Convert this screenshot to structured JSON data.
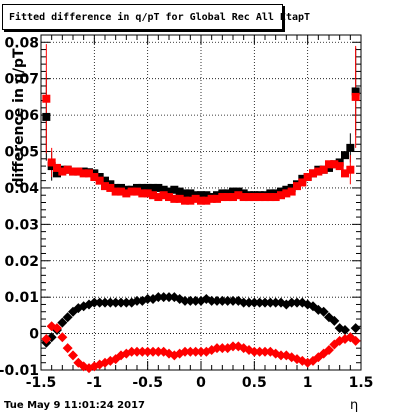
{
  "header": {
    "title": "Fitted difference in q/pT for Global Rec All EtapT"
  },
  "footer": {
    "timestamp": "Tue May  9 11:01:24 2017"
  },
  "chart_data": {
    "type": "scatter",
    "title": "Fitted difference in q/pT for Global Rec All EtapT",
    "xlabel": "η",
    "ylabel": "difference in q/pT",
    "xlim": [
      -1.5,
      1.5
    ],
    "ylim": [
      -0.01,
      0.082
    ],
    "grid": true,
    "xticks": [
      "-1.5",
      "-1",
      "-0.5",
      "0",
      "0.5",
      "1",
      "1.5"
    ],
    "yticks": [
      "-0.01",
      "0",
      "0.01",
      "0.02",
      "0.03",
      "0.04",
      "0.05",
      "0.06",
      "0.07",
      "0.08"
    ],
    "series": [
      {
        "color": "#000000",
        "marker": "square",
        "x": [
          -1.45,
          -1.4,
          -1.35,
          -1.3,
          -1.25,
          -1.2,
          -1.15,
          -1.1,
          -1.05,
          -1.0,
          -0.95,
          -0.9,
          -0.85,
          -0.8,
          -0.75,
          -0.7,
          -0.65,
          -0.6,
          -0.55,
          -0.5,
          -0.45,
          -0.4,
          -0.35,
          -0.3,
          -0.25,
          -0.2,
          -0.15,
          -0.1,
          -0.05,
          0.0,
          0.05,
          0.1,
          0.15,
          0.2,
          0.25,
          0.3,
          0.35,
          0.4,
          0.45,
          0.5,
          0.55,
          0.6,
          0.65,
          0.7,
          0.75,
          0.8,
          0.85,
          0.9,
          0.95,
          1.0,
          1.05,
          1.1,
          1.15,
          1.2,
          1.25,
          1.3,
          1.35,
          1.4,
          1.45
        ],
        "y": [
          0.0595,
          0.046,
          0.044,
          0.045,
          0.045,
          0.0445,
          0.0445,
          0.0445,
          0.0443,
          0.044,
          0.043,
          0.042,
          0.041,
          0.04,
          0.04,
          0.0395,
          0.0395,
          0.04,
          0.04,
          0.04,
          0.04,
          0.04,
          0.0395,
          0.039,
          0.0395,
          0.039,
          0.0385,
          0.0385,
          0.038,
          0.038,
          0.038,
          0.0375,
          0.038,
          0.0385,
          0.0385,
          0.039,
          0.039,
          0.0385,
          0.038,
          0.038,
          0.038,
          0.038,
          0.0385,
          0.0385,
          0.039,
          0.0395,
          0.04,
          0.041,
          0.0425,
          0.043,
          0.044,
          0.045,
          0.045,
          0.0455,
          0.0465,
          0.047,
          0.049,
          0.051,
          0.0665
        ],
        "errors": [
          0.012,
          0.004,
          0,
          0,
          0,
          0,
          0,
          0,
          0,
          0,
          0,
          0,
          0,
          0,
          0,
          0,
          0,
          0,
          0,
          0,
          0,
          0,
          0,
          0,
          0,
          0,
          0,
          0,
          0,
          0,
          0,
          0,
          0,
          0,
          0,
          0,
          0,
          0,
          0,
          0,
          0,
          0,
          0,
          0,
          0,
          0,
          0,
          0,
          0,
          0,
          0,
          0,
          0,
          0,
          0,
          0,
          0,
          0.004,
          0.012
        ]
      },
      {
        "color": "#ff0000",
        "marker": "square",
        "x": [
          -1.45,
          -1.4,
          -1.35,
          -1.3,
          -1.25,
          -1.2,
          -1.15,
          -1.1,
          -1.05,
          -1.0,
          -0.95,
          -0.9,
          -0.85,
          -0.8,
          -0.75,
          -0.7,
          -0.65,
          -0.6,
          -0.55,
          -0.5,
          -0.45,
          -0.4,
          -0.35,
          -0.3,
          -0.25,
          -0.2,
          -0.15,
          -0.1,
          -0.05,
          0.0,
          0.05,
          0.1,
          0.15,
          0.2,
          0.25,
          0.3,
          0.35,
          0.4,
          0.45,
          0.5,
          0.55,
          0.6,
          0.65,
          0.7,
          0.75,
          0.8,
          0.85,
          0.9,
          0.95,
          1.0,
          1.05,
          1.1,
          1.15,
          1.2,
          1.25,
          1.3,
          1.35,
          1.4,
          1.45
        ],
        "y": [
          0.0645,
          0.047,
          0.0455,
          0.0445,
          0.045,
          0.0445,
          0.0445,
          0.044,
          0.044,
          0.043,
          0.042,
          0.0405,
          0.04,
          0.039,
          0.039,
          0.0385,
          0.039,
          0.039,
          0.0385,
          0.0385,
          0.038,
          0.0375,
          0.038,
          0.0375,
          0.037,
          0.037,
          0.0365,
          0.0365,
          0.037,
          0.0365,
          0.0365,
          0.037,
          0.037,
          0.0375,
          0.0375,
          0.0375,
          0.038,
          0.0375,
          0.0375,
          0.0375,
          0.0375,
          0.0375,
          0.0375,
          0.0375,
          0.038,
          0.0385,
          0.039,
          0.0405,
          0.0415,
          0.043,
          0.044,
          0.0445,
          0.045,
          0.0465,
          0.0465,
          0.046,
          0.044,
          0.045,
          0.065
        ],
        "errors": [
          0.015,
          0.004,
          0,
          0,
          0,
          0,
          0,
          0,
          0,
          0,
          0,
          0,
          0,
          0,
          0,
          0,
          0,
          0,
          0,
          0,
          0,
          0,
          0,
          0,
          0,
          0,
          0,
          0,
          0,
          0,
          0,
          0,
          0,
          0,
          0,
          0,
          0,
          0,
          0,
          0,
          0,
          0,
          0,
          0,
          0,
          0,
          0,
          0,
          0,
          0,
          0,
          0,
          0,
          0,
          0,
          0,
          0,
          0.004,
          0.014
        ]
      },
      {
        "color": "#000000",
        "marker": "diamond",
        "x": [
          -1.45,
          -1.4,
          -1.35,
          -1.3,
          -1.25,
          -1.2,
          -1.15,
          -1.1,
          -1.05,
          -1.0,
          -0.95,
          -0.9,
          -0.85,
          -0.8,
          -0.75,
          -0.7,
          -0.65,
          -0.6,
          -0.55,
          -0.5,
          -0.45,
          -0.4,
          -0.35,
          -0.3,
          -0.25,
          -0.2,
          -0.15,
          -0.1,
          -0.05,
          0.0,
          0.05,
          0.1,
          0.15,
          0.2,
          0.25,
          0.3,
          0.35,
          0.4,
          0.45,
          0.5,
          0.55,
          0.6,
          0.65,
          0.7,
          0.75,
          0.8,
          0.85,
          0.9,
          0.95,
          1.0,
          1.05,
          1.1,
          1.15,
          1.2,
          1.25,
          1.3,
          1.35,
          1.4,
          1.45
        ],
        "y": [
          -0.0025,
          -0.001,
          0.001,
          0.003,
          0.0045,
          0.006,
          0.007,
          0.0075,
          0.008,
          0.0085,
          0.0085,
          0.0085,
          0.0085,
          0.0085,
          0.0085,
          0.0085,
          0.0085,
          0.009,
          0.009,
          0.0095,
          0.0095,
          0.01,
          0.01,
          0.01,
          0.01,
          0.0095,
          0.009,
          0.009,
          0.009,
          0.009,
          0.0095,
          0.009,
          0.009,
          0.009,
          0.009,
          0.009,
          0.009,
          0.0085,
          0.0085,
          0.0085,
          0.0085,
          0.0085,
          0.0085,
          0.0085,
          0.0085,
          0.008,
          0.0085,
          0.0085,
          0.0085,
          0.008,
          0.0075,
          0.0065,
          0.006,
          0.0045,
          0.0035,
          0.0015,
          0.001,
          -0.001,
          0.0015
        ]
      },
      {
        "color": "#ff0000",
        "marker": "diamond",
        "x": [
          -1.45,
          -1.4,
          -1.35,
          -1.3,
          -1.25,
          -1.2,
          -1.15,
          -1.1,
          -1.05,
          -1.0,
          -0.95,
          -0.9,
          -0.85,
          -0.8,
          -0.75,
          -0.7,
          -0.65,
          -0.6,
          -0.55,
          -0.5,
          -0.45,
          -0.4,
          -0.35,
          -0.3,
          -0.25,
          -0.2,
          -0.15,
          -0.1,
          -0.05,
          0.0,
          0.05,
          0.1,
          0.15,
          0.2,
          0.25,
          0.3,
          0.35,
          0.4,
          0.45,
          0.5,
          0.55,
          0.6,
          0.65,
          0.7,
          0.75,
          0.8,
          0.85,
          0.9,
          0.95,
          1.0,
          1.05,
          1.1,
          1.15,
          1.2,
          1.25,
          1.3,
          1.35,
          1.4,
          1.45
        ],
        "y": [
          -0.0015,
          0.002,
          0.0015,
          -0.001,
          -0.004,
          -0.006,
          -0.008,
          -0.009,
          -0.0095,
          -0.009,
          -0.0085,
          -0.008,
          -0.0075,
          -0.007,
          -0.006,
          -0.0055,
          -0.005,
          -0.005,
          -0.005,
          -0.005,
          -0.005,
          -0.005,
          -0.005,
          -0.0055,
          -0.006,
          -0.0055,
          -0.005,
          -0.005,
          -0.005,
          -0.005,
          -0.005,
          -0.0045,
          -0.004,
          -0.004,
          -0.004,
          -0.0035,
          -0.0035,
          -0.004,
          -0.0045,
          -0.005,
          -0.005,
          -0.005,
          -0.005,
          -0.0055,
          -0.006,
          -0.006,
          -0.0065,
          -0.007,
          -0.0075,
          -0.008,
          -0.0075,
          -0.0065,
          -0.0055,
          -0.0045,
          -0.003,
          -0.002,
          -0.0015,
          -0.001,
          -0.002
        ]
      }
    ]
  }
}
